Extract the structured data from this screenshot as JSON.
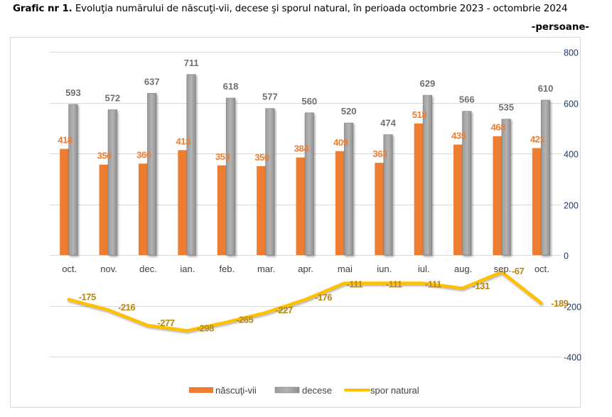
{
  "header": {
    "title_prefix": "Grafic nr 1.",
    "title_text": " Evoluţia numărului de născuţi-vii, decese şi sporul natural, în perioada  octombrie 2023 - octombrie 2024",
    "unit": "-persoane-"
  },
  "chart_data": {
    "type": "bar",
    "title": "Evoluţia numărului de născuţi-vii, decese şi sporul natural, în perioada  octombrie 2023 - octombrie 2024",
    "xlabel": "",
    "ylabel": "-persoane-",
    "ylim": [
      -400,
      800
    ],
    "yticks": [
      800,
      600,
      400,
      200,
      0,
      -200,
      -400
    ],
    "ytick_labels": [
      "800",
      "600",
      "400",
      "200",
      "0",
      "-200",
      "-400"
    ],
    "grid": true,
    "legend_position": "bottom",
    "categories": [
      "oct.",
      "nov.",
      "dec.",
      "ian.",
      "feb.",
      "mar.",
      "apr.",
      "mai",
      "iun.",
      "iul.",
      "aug.",
      "sep.",
      "oct."
    ],
    "series": [
      {
        "name": "născuţi-vii",
        "type": "bar",
        "color": "#ED7D31",
        "values": [
          418,
          356,
          360,
          413,
          353,
          350,
          384,
          409,
          363,
          518,
          435,
          468,
          421
        ]
      },
      {
        "name": "decese",
        "type": "bar",
        "color": "#A5A5A5",
        "values": [
          593,
          572,
          637,
          711,
          618,
          577,
          560,
          520,
          474,
          629,
          566,
          535,
          610
        ]
      },
      {
        "name": "spor natural",
        "type": "line",
        "color": "#FFC000",
        "values": [
          -175,
          -216,
          -277,
          -298,
          -265,
          -227,
          -176,
          -111,
          -111,
          -111,
          -131,
          -67,
          -189
        ]
      }
    ]
  }
}
